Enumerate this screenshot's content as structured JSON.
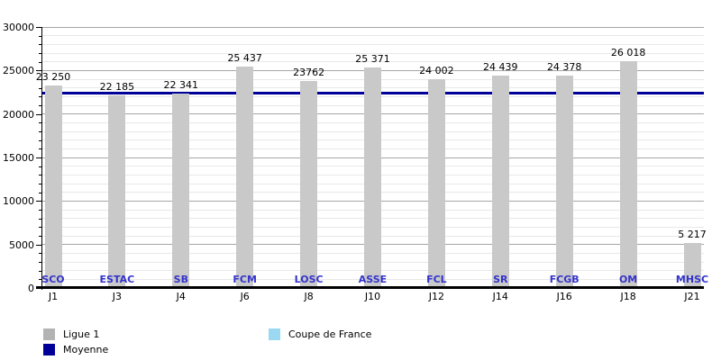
{
  "chart_data": {
    "type": "bar",
    "title": "",
    "xlabel": "",
    "ylabel": "",
    "ylim": [
      0,
      30000
    ],
    "y_major_step": 5000,
    "y_minor_step": 1000,
    "grid": "horizontal",
    "legend_position": "bottom",
    "categories": [
      "J1",
      "J3",
      "J4",
      "J6",
      "J8",
      "J10",
      "J12",
      "J14",
      "J16",
      "J18",
      "J21"
    ],
    "teams": [
      "SCO",
      "ESTAC",
      "SB",
      "FCM",
      "LOSC",
      "ASSE",
      "FCL",
      "SR",
      "FCGB",
      "OM",
      "MHSC"
    ],
    "values": [
      23250,
      22185,
      22341,
      25437,
      23762,
      25371,
      24002,
      24439,
      24378,
      26018,
      5217
    ],
    "value_labels": [
      "23 250",
      "22 185",
      "22 341",
      "25 437",
      "23762",
      "25 371",
      "24 002",
      "24 439",
      "24 378",
      "26 018",
      "5 217"
    ],
    "moyenne_value": 22400,
    "series_name": "Ligue 1",
    "legend": [
      {
        "label": "Ligue 1",
        "color": "#b3b3b3"
      },
      {
        "label": "Moyenne",
        "color": "#000099"
      },
      {
        "label": "Coupe de France",
        "color": "#9bd8f2"
      }
    ],
    "colors": {
      "bar": "#c9c9c9",
      "moyenne_line": "#000099",
      "team_label": "#3333cc",
      "axis": "#000000",
      "grid_major": "#a6a6a6",
      "grid_minor": "#e8e8e8",
      "value_label": "#000000"
    }
  }
}
